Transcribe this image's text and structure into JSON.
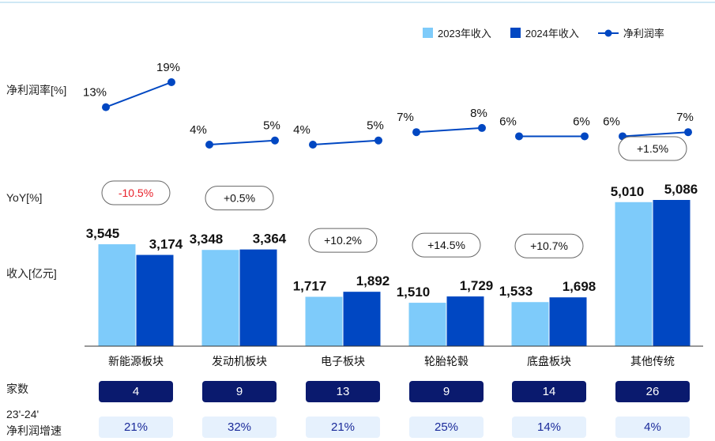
{
  "legend": {
    "rev2023": "2023年收入",
    "rev2024": "2024年收入",
    "margin": "净利润率"
  },
  "row_labels": {
    "margin": "净利润率[%]",
    "yoy": "YoY[%]",
    "revenue": "收入[亿元]",
    "count": "家数",
    "growth_line1": "23'-24'",
    "growth_line2": "净利润增速"
  },
  "colors": {
    "rev2023": "#7ecbfa",
    "rev2024": "#0047c2",
    "margin_line": "#0047c2",
    "negative": "#e8202a",
    "count_pill": "#0a1a6e",
    "growth_pill": "#e6f1fd"
  },
  "chart_data": {
    "type": "bar",
    "categories": [
      "新能源板块",
      "发动机板块",
      "电子板块",
      "轮胎轮毂",
      "底盘板块",
      "其他传统"
    ],
    "series": [
      {
        "name": "2023年收入",
        "values": [
          3545,
          3348,
          1717,
          1510,
          1533,
          5010
        ],
        "labels": [
          "3,545",
          "3,348",
          "1,717",
          "1,510",
          "1,533",
          "5,010"
        ]
      },
      {
        "name": "2024年收入",
        "values": [
          3174,
          3364,
          1892,
          1729,
          1698,
          5086
        ],
        "labels": [
          "3,174",
          "3,364",
          "1,892",
          "1,729",
          "1,698",
          "5,086"
        ]
      }
    ],
    "yoy": [
      "-10.5%",
      "+0.5%",
      "+10.2%",
      "+14.5%",
      "+10.7%",
      "+1.5%"
    ],
    "margin": {
      "name": "净利润率",
      "y2023": [
        13,
        4,
        4,
        7,
        6,
        6
      ],
      "y2024": [
        19,
        5,
        5,
        8,
        6,
        7
      ],
      "labels2023": [
        "13%",
        "4%",
        "4%",
        "7%",
        "6%",
        "6%"
      ],
      "labels2024": [
        "19%",
        "5%",
        "5%",
        "8%",
        "6%",
        "7%"
      ]
    },
    "counts": [
      "4",
      "9",
      "13",
      "9",
      "14",
      "26"
    ],
    "profit_growth": [
      "21%",
      "32%",
      "21%",
      "25%",
      "14%",
      "4%"
    ]
  }
}
